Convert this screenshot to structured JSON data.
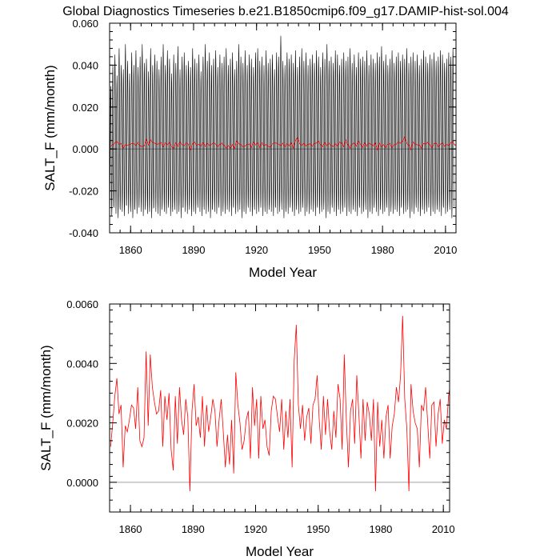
{
  "title": "Global Diagnostics Timeseries b.e21.B1850cmip6.f09_g17.DAMIP-hist-sol.004",
  "colors": {
    "monthly": "#000000",
    "annual": "#ff0000",
    "zero_line": "#a0a0a0"
  },
  "chart_data": [
    {
      "type": "line",
      "xlabel": "Model Year",
      "ylabel": "SALT_F (mm/month)",
      "xlim": [
        1850,
        2015
      ],
      "ylim": [
        -0.04,
        0.06
      ],
      "xticks": [
        1860,
        1890,
        1920,
        1950,
        1980,
        2010
      ],
      "xtick_labels": [
        "1860",
        "1890",
        "1920",
        "1950",
        "1980",
        "2010"
      ],
      "yticks": [
        -0.04,
        -0.02,
        0.0,
        0.02,
        0.04,
        0.06
      ],
      "ytick_labels": [
        "-0.040",
        "-0.020",
        "0.000",
        "0.020",
        "0.040",
        "0.060"
      ],
      "reference_line": 0,
      "series": [
        {
          "style": "monthly",
          "x_start": 1850,
          "months_per_year": 12,
          "annual_max": [
            0.03,
            0.04,
            0.045,
            0.035,
            0.048,
            0.04,
            0.038,
            0.05,
            0.042,
            0.036,
            0.046,
            0.04,
            0.047,
            0.039,
            0.044,
            0.05,
            0.041,
            0.043,
            0.037,
            0.048,
            0.04,
            0.045,
            0.042,
            0.038,
            0.044,
            0.05,
            0.04,
            0.047,
            0.043,
            0.036,
            0.045,
            0.041,
            0.049,
            0.038,
            0.044,
            0.046,
            0.04,
            0.042,
            0.039,
            0.048,
            0.043,
            0.041,
            0.045,
            0.037,
            0.044,
            0.05,
            0.042,
            0.046,
            0.04,
            0.043,
            0.047,
            0.039,
            0.045,
            0.041,
            0.044,
            0.048,
            0.04,
            0.043,
            0.046,
            0.038,
            0.042,
            0.05,
            0.044,
            0.041,
            0.047,
            0.04,
            0.045,
            0.043,
            0.039,
            0.046,
            0.048,
            0.042,
            0.044,
            0.04,
            0.047,
            0.041,
            0.043,
            0.045,
            0.038,
            0.046,
            0.044,
            0.054,
            0.042,
            0.04,
            0.046,
            0.043,
            0.045,
            0.041,
            0.047,
            0.039,
            0.044,
            0.048,
            0.042,
            0.046,
            0.04,
            0.043,
            0.045,
            0.041,
            0.047,
            0.044,
            0.039,
            0.046,
            0.043,
            0.05,
            0.042,
            0.044,
            0.041,
            0.047,
            0.045,
            0.04,
            0.043,
            0.046,
            0.042,
            0.044,
            0.048,
            0.041,
            0.045,
            0.039,
            0.046,
            0.043,
            0.044,
            0.042,
            0.047,
            0.04,
            0.045,
            0.043,
            0.041,
            0.046,
            0.044,
            0.049,
            0.042,
            0.045,
            0.04,
            0.043,
            0.047,
            0.041,
            0.044,
            0.046,
            0.042,
            0.045,
            0.043,
            0.048,
            0.041,
            0.044,
            0.046,
            0.042,
            0.045,
            0.04,
            0.043,
            0.047,
            0.044,
            0.041,
            0.045,
            0.043,
            0.046,
            0.042,
            0.044,
            0.047,
            0.045,
            0.041,
            0.043,
            0.046,
            0.044,
            0.048
          ],
          "annual_min": [
            -0.03,
            -0.032,
            -0.028,
            -0.031,
            -0.033,
            -0.029,
            -0.03,
            -0.032,
            -0.027,
            -0.031,
            -0.03,
            -0.033,
            -0.029,
            -0.031,
            -0.028,
            -0.03,
            -0.032,
            -0.029,
            -0.031,
            -0.03,
            -0.033,
            -0.028,
            -0.03,
            -0.031,
            -0.032,
            -0.029,
            -0.03,
            -0.031,
            -0.028,
            -0.032,
            -0.03,
            -0.029,
            -0.031,
            -0.03,
            -0.033,
            -0.028,
            -0.03,
            -0.031,
            -0.029,
            -0.032,
            -0.03,
            -0.031,
            -0.028,
            -0.03,
            -0.032,
            -0.029,
            -0.031,
            -0.03,
            -0.033,
            -0.029,
            -0.03,
            -0.031,
            -0.028,
            -0.032,
            -0.03,
            -0.031,
            -0.029,
            -0.03,
            -0.032,
            -0.028,
            -0.031,
            -0.03,
            -0.029,
            -0.033,
            -0.03,
            -0.031,
            -0.028,
            -0.03,
            -0.032,
            -0.029,
            -0.031,
            -0.03,
            -0.028,
            -0.032,
            -0.03,
            -0.031,
            -0.029,
            -0.03,
            -0.032,
            -0.028,
            -0.031,
            -0.03,
            -0.029,
            -0.033,
            -0.03,
            -0.031,
            -0.028,
            -0.03,
            -0.032,
            -0.029,
            -0.031,
            -0.03,
            -0.028,
            -0.032,
            -0.03,
            -0.031,
            -0.029,
            -0.03,
            -0.032,
            -0.028,
            -0.031,
            -0.03,
            -0.029,
            -0.033,
            -0.03,
            -0.031,
            -0.028,
            -0.03,
            -0.032,
            -0.029,
            -0.031,
            -0.03,
            -0.028,
            -0.032,
            -0.03,
            -0.031,
            -0.029,
            -0.03,
            -0.032,
            -0.028,
            -0.031,
            -0.03,
            -0.029,
            -0.033,
            -0.03,
            -0.031,
            -0.028,
            -0.03,
            -0.032,
            -0.029,
            -0.031,
            -0.03,
            -0.028,
            -0.032,
            -0.03,
            -0.031,
            -0.029,
            -0.03,
            -0.032,
            -0.028,
            -0.031,
            -0.03,
            -0.029,
            -0.033,
            -0.03,
            -0.031,
            -0.028,
            -0.03,
            -0.032,
            -0.029,
            -0.031,
            -0.03,
            -0.028,
            -0.032,
            -0.03,
            -0.031,
            -0.029,
            -0.03,
            -0.032,
            -0.028,
            -0.031,
            -0.03,
            -0.029,
            -0.033,
            -0.03
          ]
        },
        {
          "style": "annual",
          "x_start": 1850,
          "values": [
            0.0012,
            0.002,
            0.0029,
            0.0035,
            0.0023,
            0.0026,
            0.0005,
            0.0019,
            0.0017,
            0.0021,
            0.0026,
            0.0025,
            0.0018,
            0.0032,
            0.0014,
            0.0012,
            0.0015,
            0.0044,
            0.0019,
            0.0043,
            0.0032,
            0.0027,
            0.0023,
            0.0024,
            0.0031,
            0.0012,
            0.0029,
            0.0021,
            0.003,
            0.0011,
            0.0004,
            0.0029,
            0.0013,
            0.0032,
            0.0021,
            0.0016,
            0.0028,
            0.0022,
            -0.0003,
            0.0024,
            0.0033,
            0.0019,
            0.0022,
            0.0015,
            0.0029,
            0.0012,
            0.0026,
            0.0017,
            0.0022,
            0.0028,
            0.0024,
            0.0012,
            0.0021,
            0.0028,
            0.0017,
            0.0005,
            0.0016,
            0.0006,
            0.0021,
            0.0003,
            0.0037,
            0.0026,
            0.002,
            0.0011,
            0.0014,
            0.0021,
            0.0024,
            0.0008,
            0.0032,
            0.0019,
            0.0028,
            0.0008,
            0.0029,
            0.0018,
            0.0021,
            0.0012,
            0.0009,
            0.0024,
            0.0029,
            0.0028,
            0.0022,
            0.0017,
            0.0028,
            0.0011,
            0.0024,
            0.0015,
            0.0028,
            0.0005,
            0.0041,
            0.0053,
            0.0026,
            0.0018,
            0.0026,
            0.0014,
            0.0022,
            0.0025,
            0.0013,
            0.0026,
            0.0028,
            0.0036,
            0.0021,
            0.0011,
            0.0029,
            0.0016,
            0.0028,
            0.0017,
            0.0011,
            0.0024,
            0.0015,
            0.0033,
            0.0028,
            0.0011,
            0.0043,
            0.0021,
            0.0005,
            0.0024,
            0.0028,
            0.0013,
            0.0036,
            0.0023,
            0.0008,
            0.0028,
            0.0014,
            0.0027,
            0.0023,
            0.0014,
            0.0028,
            -0.0003,
            0.0027,
            0.0012,
            0.0021,
            0.0008,
            0.0022,
            0.0026,
            0.0008,
            0.0019,
            0.0023,
            0.0032,
            0.0027,
            0.0036,
            0.0056,
            0.0028,
            0.0018,
            -0.0003,
            0.0033,
            0.0024,
            0.002,
            0.0018,
            0.0005,
            0.0026,
            0.0024,
            0.0032,
            0.002,
            0.0008,
            0.0026,
            0.0027,
            0.0012,
            0.0023,
            0.0028,
            0.0013,
            0.0021,
            0.0018,
            0.0029,
            0.0034,
            0.0018,
            0.0021,
            0.0027,
            0.0024
          ]
        }
      ]
    },
    {
      "type": "line",
      "xlabel": "Model Year",
      "ylabel": "SALT_F (mm/month)",
      "xlim": [
        1850,
        2013
      ],
      "ylim": [
        -0.001,
        0.006
      ],
      "xticks": [
        1860,
        1890,
        1920,
        1950,
        1980,
        2010
      ],
      "xtick_labels": [
        "1860",
        "1890",
        "1920",
        "1950",
        "1980",
        "2010"
      ],
      "yticks": [
        0.0,
        0.002,
        0.004,
        0.006
      ],
      "ytick_labels": [
        "0.0000",
        "0.0020",
        "0.0040",
        "0.0060"
      ],
      "reference_line": 0,
      "series": [
        {
          "style": "annual",
          "x_start": 1850,
          "values": [
            0.0012,
            0.002,
            0.0029,
            0.0035,
            0.0023,
            0.0026,
            0.0005,
            0.0019,
            0.0017,
            0.0021,
            0.0026,
            0.0025,
            0.0018,
            0.0032,
            0.0014,
            0.0012,
            0.0015,
            0.0044,
            0.0019,
            0.0043,
            0.0032,
            0.0027,
            0.0023,
            0.0024,
            0.0031,
            0.0012,
            0.0029,
            0.0021,
            0.003,
            0.0011,
            0.0004,
            0.0029,
            0.0013,
            0.0032,
            0.0021,
            0.0016,
            0.0028,
            0.0022,
            -0.0003,
            0.0024,
            0.0033,
            0.0019,
            0.0022,
            0.0015,
            0.0029,
            0.0012,
            0.0026,
            0.0017,
            0.0022,
            0.0028,
            0.0024,
            0.0012,
            0.0021,
            0.0028,
            0.0017,
            0.0005,
            0.0016,
            0.0006,
            0.0021,
            0.0003,
            0.0037,
            0.0026,
            0.002,
            0.0011,
            0.0014,
            0.0021,
            0.0024,
            0.0008,
            0.0032,
            0.0019,
            0.0028,
            0.0008,
            0.0029,
            0.0018,
            0.0021,
            0.0012,
            0.0009,
            0.0024,
            0.0029,
            0.0028,
            0.0022,
            0.0017,
            0.0028,
            0.0011,
            0.0024,
            0.0015,
            0.0028,
            0.0005,
            0.0041,
            0.0053,
            0.0026,
            0.0018,
            0.0026,
            0.0014,
            0.0022,
            0.0025,
            0.0013,
            0.0026,
            0.0028,
            0.0036,
            0.0021,
            0.0011,
            0.0029,
            0.0016,
            0.0028,
            0.0017,
            0.0011,
            0.0024,
            0.0015,
            0.0033,
            0.0028,
            0.0011,
            0.0043,
            0.0021,
            0.0005,
            0.0024,
            0.0028,
            0.0013,
            0.0036,
            0.0023,
            0.0008,
            0.0028,
            0.0014,
            0.0027,
            0.0023,
            0.0014,
            0.0028,
            -0.0003,
            0.0027,
            0.0012,
            0.0021,
            0.0008,
            0.0022,
            0.0026,
            0.0008,
            0.0019,
            0.0023,
            0.0032,
            0.0027,
            0.0036,
            0.0056,
            0.0028,
            0.0018,
            -0.0003,
            0.0033,
            0.0024,
            0.002,
            0.0018,
            0.0005,
            0.0026,
            0.0024,
            0.0032,
            0.002,
            0.0008,
            0.0026,
            0.0027,
            0.0012,
            0.0023,
            0.0028,
            0.0013,
            0.0021,
            0.0018,
            0.0029,
            0.0034,
            0.0018,
            0.0021,
            0.0027,
            0.0024
          ]
        }
      ]
    }
  ]
}
